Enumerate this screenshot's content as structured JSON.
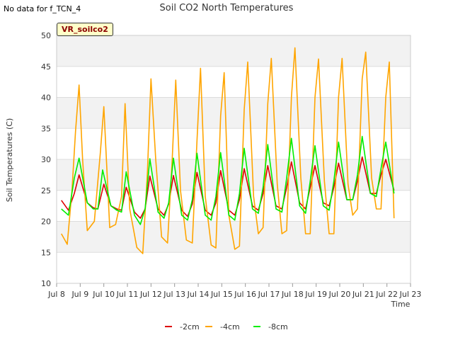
{
  "header": {
    "no_data_note": "No data for f_TCN_4",
    "badge_label": "VR_soilco2"
  },
  "chart_data": {
    "type": "line",
    "title": "Soil CO2 North Temperatures",
    "xlabel": "Time",
    "ylabel": "Soil Temperatures (C)",
    "ylim": [
      10,
      50
    ],
    "y_ticks": [
      10,
      15,
      20,
      25,
      30,
      35,
      40,
      45,
      50
    ],
    "x_ticks": [
      "Jul 8",
      "Jul 9",
      "Jul 10",
      "Jul 11",
      "Jul 12",
      "Jul 13",
      "Jul 14",
      "Jul 15",
      "Jul 16",
      "Jul 17",
      "Jul 18",
      "Jul 19",
      "Jul 20",
      "Jul 21",
      "Jul 22",
      "Jul 23"
    ],
    "xlim_days": [
      8,
      23
    ],
    "grid": true,
    "legend_position": "bottom",
    "series": [
      {
        "name": "-2cm",
        "color": "#dd0000",
        "x": [
          8.2,
          8.5,
          8.75,
          8.95,
          9.3,
          9.55,
          9.75,
          10.0,
          10.3,
          10.55,
          10.75,
          10.95,
          11.3,
          11.55,
          11.75,
          11.95,
          12.3,
          12.55,
          12.75,
          12.95,
          13.3,
          13.55,
          13.75,
          13.95,
          14.3,
          14.55,
          14.75,
          14.95,
          15.3,
          15.55,
          15.75,
          15.95,
          16.3,
          16.55,
          16.75,
          16.95,
          17.3,
          17.55,
          17.75,
          17.95,
          18.3,
          18.55,
          18.75,
          18.95,
          19.3,
          19.55,
          19.75,
          19.95,
          20.3,
          20.55,
          20.75,
          20.95,
          21.3,
          21.55,
          21.75,
          21.95,
          22.3
        ],
        "y": [
          23.4,
          21.8,
          24.5,
          27.5,
          23.0,
          22.2,
          22.0,
          26.0,
          22.5,
          22.0,
          21.8,
          25.5,
          21.5,
          20.5,
          22.0,
          27.3,
          22.0,
          21.0,
          22.8,
          27.4,
          21.8,
          20.8,
          22.8,
          27.9,
          21.8,
          21.0,
          23.0,
          28.2,
          21.8,
          21.0,
          23.5,
          28.5,
          22.5,
          21.8,
          24.5,
          29.0,
          22.5,
          22.0,
          25.5,
          29.6,
          23.0,
          22.0,
          25.5,
          29.0,
          23.0,
          22.5,
          25.5,
          29.4,
          23.5,
          23.5,
          26.5,
          30.4,
          24.5,
          24.5,
          27.5,
          30.0,
          25.0
        ]
      },
      {
        "name": "-4cm",
        "color": "#ffa500",
        "x": [
          8.2,
          8.45,
          8.65,
          8.8,
          8.95,
          9.1,
          9.3,
          9.6,
          9.85,
          10.0,
          10.25,
          10.5,
          10.75,
          10.9,
          11.1,
          11.4,
          11.65,
          11.85,
          12.0,
          12.2,
          12.45,
          12.7,
          12.9,
          13.05,
          13.25,
          13.5,
          13.75,
          13.95,
          14.1,
          14.3,
          14.55,
          14.75,
          14.95,
          15.1,
          15.3,
          15.55,
          15.75,
          15.95,
          16.1,
          16.35,
          16.55,
          16.75,
          16.95,
          17.1,
          17.35,
          17.55,
          17.75,
          17.95,
          18.1,
          18.35,
          18.55,
          18.75,
          18.95,
          19.1,
          19.35,
          19.55,
          19.75,
          19.95,
          20.1,
          20.35,
          20.55,
          20.75,
          20.95,
          21.1,
          21.35,
          21.55,
          21.75,
          21.95,
          22.1,
          22.3
        ],
        "y": [
          18.0,
          16.3,
          25.0,
          34.5,
          42.0,
          30.0,
          18.5,
          20.0,
          31.0,
          38.5,
          19.0,
          19.5,
          24.0,
          39.0,
          22.0,
          15.8,
          14.8,
          28.0,
          43.0,
          30.0,
          17.5,
          16.5,
          30.0,
          42.8,
          25.0,
          17.0,
          16.5,
          33.0,
          44.7,
          24.0,
          16.2,
          15.7,
          37.0,
          44.0,
          21.0,
          15.5,
          16.0,
          38.0,
          45.7,
          24.0,
          18.0,
          19.0,
          39.0,
          46.3,
          26.0,
          18.0,
          18.5,
          40.0,
          48.0,
          27.0,
          18.0,
          18.0,
          40.0,
          46.2,
          26.5,
          18.0,
          18.0,
          40.0,
          46.3,
          26.0,
          21.0,
          22.0,
          43.0,
          47.3,
          27.0,
          22.0,
          22.0,
          40.0,
          45.7,
          20.5
        ]
      },
      {
        "name": "-8cm",
        "color": "#00ee00",
        "x": [
          8.2,
          8.5,
          8.75,
          8.95,
          9.3,
          9.55,
          9.75,
          9.95,
          10.3,
          10.55,
          10.75,
          10.95,
          11.3,
          11.55,
          11.75,
          11.95,
          12.3,
          12.55,
          12.75,
          12.95,
          13.3,
          13.55,
          13.75,
          13.95,
          14.3,
          14.55,
          14.75,
          14.95,
          15.3,
          15.55,
          15.75,
          15.95,
          16.3,
          16.55,
          16.75,
          16.95,
          17.3,
          17.55,
          17.75,
          17.95,
          18.3,
          18.55,
          18.75,
          18.95,
          19.3,
          19.55,
          19.75,
          19.95,
          20.3,
          20.55,
          20.75,
          20.95,
          21.3,
          21.55,
          21.75,
          21.95,
          22.3
        ],
        "y": [
          22.0,
          21.0,
          27.0,
          30.2,
          23.0,
          22.0,
          22.0,
          28.3,
          22.5,
          21.8,
          21.5,
          28.0,
          21.0,
          19.5,
          22.0,
          30.1,
          21.5,
          20.5,
          23.0,
          30.2,
          21.0,
          20.2,
          23.5,
          31.0,
          21.0,
          20.2,
          24.0,
          31.1,
          21.0,
          20.2,
          24.5,
          31.8,
          22.0,
          21.3,
          25.5,
          32.4,
          22.0,
          21.5,
          27.0,
          33.4,
          22.5,
          21.3,
          26.5,
          32.2,
          22.5,
          21.8,
          26.5,
          32.8,
          23.5,
          23.5,
          27.5,
          33.7,
          24.5,
          24.0,
          28.5,
          32.8,
          24.5
        ]
      }
    ]
  }
}
